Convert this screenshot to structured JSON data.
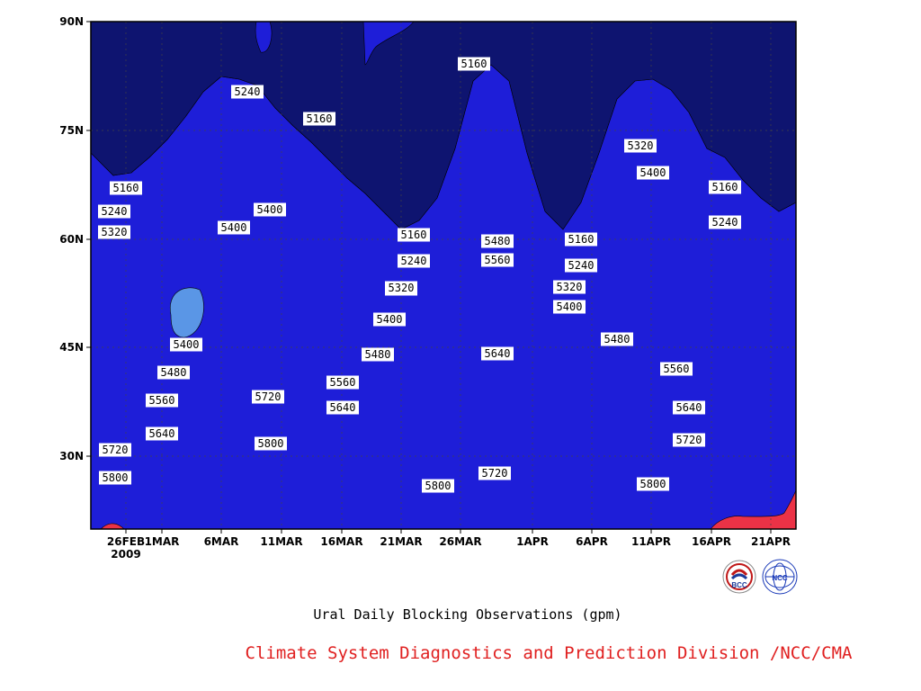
{
  "chart_data": {
    "type": "contour",
    "title": "Ural Daily Blocking Observations (gpm)",
    "xlabel": "",
    "ylabel": "",
    "x_ticks": [
      "26FEB",
      "1MAR",
      "6MAR",
      "11MAR",
      "16MAR",
      "21MAR",
      "26MAR",
      "1APR",
      "6APR",
      "11APR",
      "16APR",
      "21APR"
    ],
    "x_tick_year": "2009",
    "y_ticks": [
      "90N",
      "75N",
      "60N",
      "45N",
      "30N"
    ],
    "ylim_lat": [
      20,
      90
    ],
    "grid": true,
    "contour_levels": [
      5160,
      5240,
      5320,
      5400,
      5480,
      5560,
      5640,
      5720,
      5800
    ],
    "colors": {
      "lt5160": "#0e1470",
      "5160": "#1e1ed8",
      "5240": "#4a55e6",
      "5320": "#5a96e6",
      "5400": "#66c8fa",
      "5480": "#fafa78",
      "5560": "#fae1a5",
      "5640": "#fa9e64",
      "5720": "#fa733c",
      "5800": "#f56e78",
      "gt5880": "#eb3246"
    },
    "contour_labels": [
      {
        "text": "5160"
      },
      {
        "text": "5240"
      },
      {
        "text": "5320"
      },
      {
        "text": "5400"
      },
      {
        "text": "5480"
      },
      {
        "text": "5560"
      },
      {
        "text": "5640"
      },
      {
        "text": "5720"
      },
      {
        "text": "5800"
      },
      {
        "text": "5400"
      },
      {
        "text": "5480"
      },
      {
        "text": "5560"
      },
      {
        "text": "5640"
      },
      {
        "text": "5720"
      },
      {
        "text": "5800"
      },
      {
        "text": "5240"
      },
      {
        "text": "5400"
      },
      {
        "text": "5160"
      },
      {
        "text": "5320"
      },
      {
        "text": "5720"
      },
      {
        "text": "5800"
      },
      {
        "text": "5560"
      },
      {
        "text": "5640"
      },
      {
        "text": "5160"
      },
      {
        "text": "5240"
      },
      {
        "text": "5320"
      },
      {
        "text": "5400"
      },
      {
        "text": "5480"
      },
      {
        "text": "5800"
      },
      {
        "text": "5160"
      },
      {
        "text": "5480"
      },
      {
        "text": "5560"
      },
      {
        "text": "5640"
      },
      {
        "text": "5720"
      },
      {
        "text": "5160"
      },
      {
        "text": "5240"
      },
      {
        "text": "5320"
      },
      {
        "text": "5400"
      },
      {
        "text": "5320"
      },
      {
        "text": "5400"
      },
      {
        "text": "5480"
      },
      {
        "text": "5560"
      },
      {
        "text": "5640"
      },
      {
        "text": "5720"
      },
      {
        "text": "5800"
      },
      {
        "text": "5160"
      },
      {
        "text": "5240"
      }
    ]
  },
  "credit": "Climate System Diagnostics and Prediction Division /NCC/CMA",
  "logos": [
    {
      "name": "bcc-logo",
      "text": "BCC"
    },
    {
      "name": "ncc-logo",
      "text": "NCC"
    }
  ]
}
